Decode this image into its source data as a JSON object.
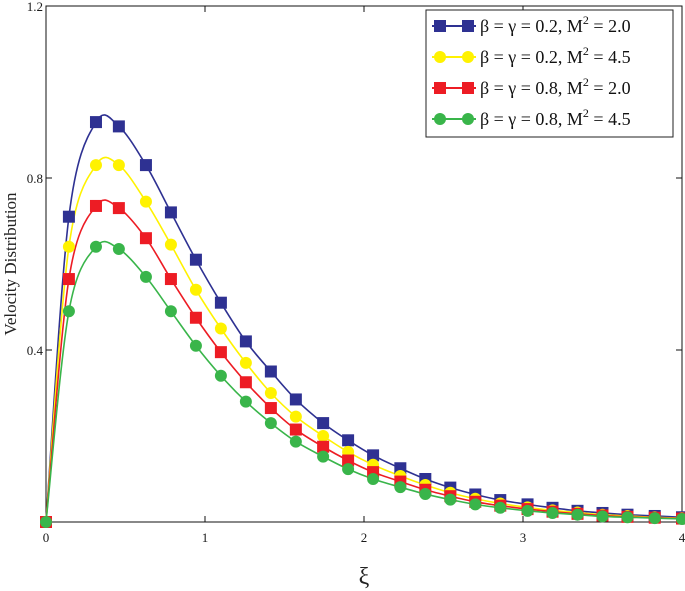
{
  "chart_data": {
    "type": "line",
    "xlabel": "ξ",
    "ylabel": "Velocity Distribution",
    "xlim": [
      0,
      4
    ],
    "ylim": [
      0,
      1.2
    ],
    "x_ticks": [
      0,
      1,
      2,
      3,
      4
    ],
    "y_ticks": [
      0.4,
      0.8,
      1.2
    ],
    "y_tick_labels": [
      "0.4",
      "0.8",
      "1.2"
    ],
    "legend_position": "top-right",
    "grid": false,
    "x": [
      0,
      0.1441,
      0.3143,
      0.4583,
      0.6286,
      0.7857,
      0.9429,
      1.1,
      1.2571,
      1.4143,
      1.5714,
      1.7429,
      1.9,
      2.0571,
      2.2286,
      2.3857,
      2.5429,
      2.7,
      2.8571,
      3.0286,
      3.1857,
      3.3429,
      3.5,
      3.6571,
      3.8286,
      4.0
    ],
    "series": [
      {
        "legend_base": "β = γ = 0.2, M",
        "legend_exp": "2",
        "legend_tail": " = 2.0",
        "color": "#2e3192",
        "marker": "square",
        "values": [
          0,
          0.71,
          0.93,
          0.92,
          0.83,
          0.72,
          0.61,
          0.51,
          0.42,
          0.35,
          0.285,
          0.23,
          0.19,
          0.155,
          0.125,
          0.1,
          0.08,
          0.064,
          0.051,
          0.041,
          0.033,
          0.026,
          0.021,
          0.017,
          0.014,
          0.011
        ]
      },
      {
        "legend_base": "β = γ = 0.2, M",
        "legend_exp": "2",
        "legend_tail": " = 4.5",
        "color": "#fff200",
        "marker": "circle",
        "values": [
          0,
          0.64,
          0.83,
          0.83,
          0.745,
          0.645,
          0.54,
          0.45,
          0.37,
          0.3,
          0.245,
          0.2,
          0.163,
          0.133,
          0.107,
          0.086,
          0.068,
          0.054,
          0.043,
          0.034,
          0.027,
          0.022,
          0.017,
          0.014,
          0.011,
          0.009
        ]
      },
      {
        "legend_base": "β = γ = 0.8, M",
        "legend_exp": "2",
        "legend_tail": " = 2.0",
        "color": "#ed1c24",
        "marker": "square",
        "values": [
          0,
          0.565,
          0.735,
          0.73,
          0.66,
          0.565,
          0.475,
          0.395,
          0.325,
          0.265,
          0.215,
          0.175,
          0.143,
          0.116,
          0.094,
          0.075,
          0.06,
          0.047,
          0.038,
          0.03,
          0.024,
          0.019,
          0.015,
          0.012,
          0.01,
          0.008
        ]
      },
      {
        "legend_base": "β = γ = 0.8, M",
        "legend_exp": "2",
        "legend_tail": " = 4.5",
        "color": "#39b54a",
        "marker": "circle",
        "values": [
          0,
          0.49,
          0.64,
          0.635,
          0.57,
          0.49,
          0.41,
          0.34,
          0.28,
          0.23,
          0.187,
          0.152,
          0.123,
          0.1,
          0.081,
          0.065,
          0.052,
          0.041,
          0.033,
          0.026,
          0.021,
          0.017,
          0.013,
          0.011,
          0.009,
          0.007
        ]
      }
    ]
  }
}
